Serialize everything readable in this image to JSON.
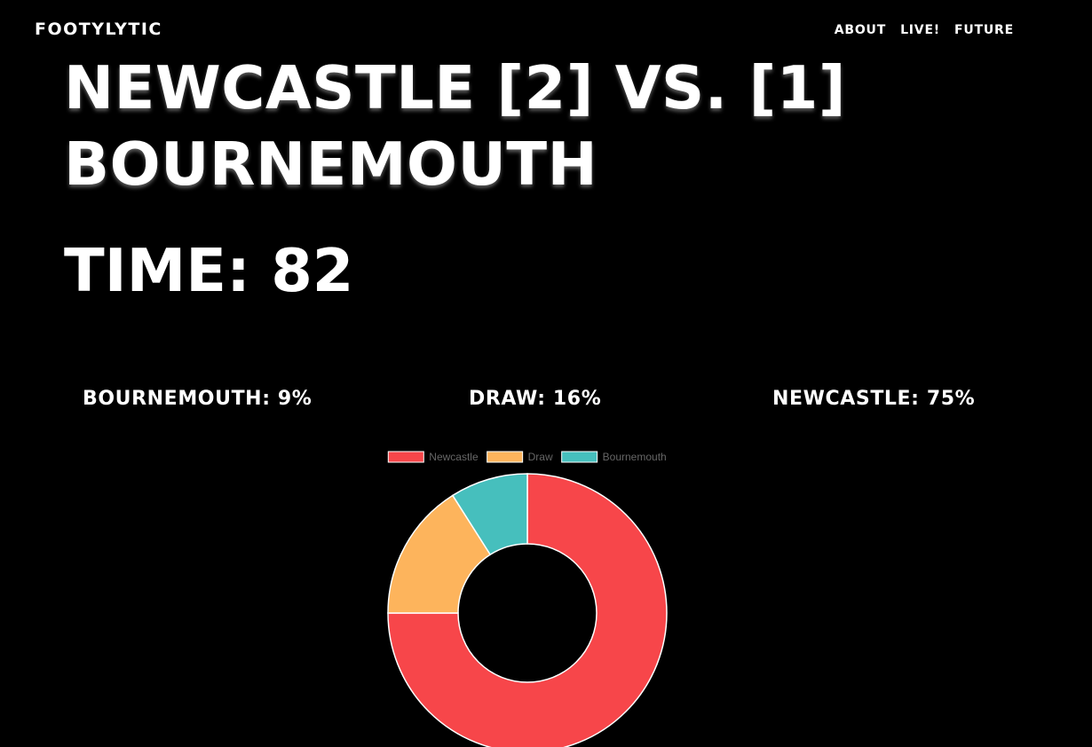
{
  "header": {
    "brand": "FOOTYLYTIC",
    "nav": [
      {
        "label": "ABOUT"
      },
      {
        "label": "LIVE!"
      },
      {
        "label": "FUTURE"
      }
    ]
  },
  "match": {
    "line1": "NEWCASTLE [2] VS. [1]",
    "line2": "BOURNEMOUTH",
    "time": "TIME: 82"
  },
  "probabilities": {
    "away": "BOURNEMOUTH: 9%",
    "draw": "DRAW: 16%",
    "home": "NEWCASTLE: 75%"
  },
  "chart_data": {
    "type": "pie",
    "variant": "doughnut",
    "categories": [
      "Newcastle",
      "Draw",
      "Bournemouth"
    ],
    "values": [
      75,
      16,
      9
    ],
    "colors": [
      "#F7464A",
      "#FDB45C",
      "#46BFBD"
    ],
    "legend": "top"
  }
}
